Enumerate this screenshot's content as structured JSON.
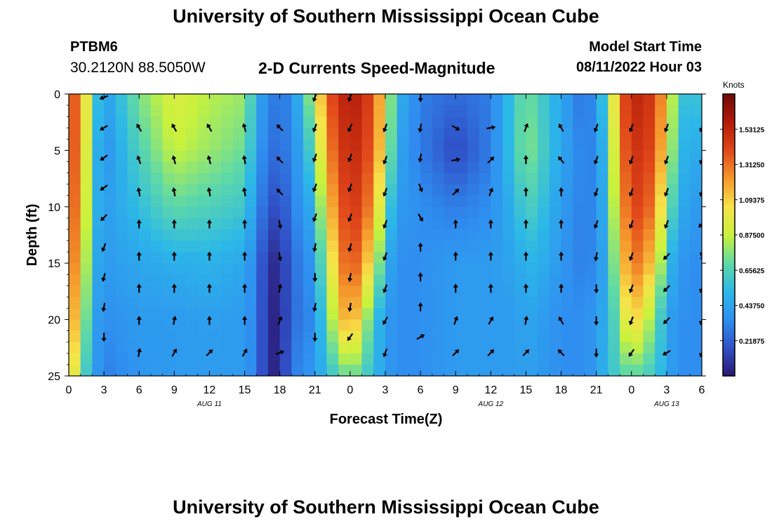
{
  "header": {
    "title": "University of Southern Mississippi Ocean Cube",
    "station_id": "PTBM6",
    "coordinates": "30.2120N  88.5050W",
    "subtitle": "2-D Currents Speed-Magnitude",
    "model_start_label": "Model Start Time",
    "model_start_value": "08/11/2022 Hour 03"
  },
  "footer": {
    "title": "University of Southern Mississippi Ocean Cube"
  },
  "colors": {
    "colormap": [
      "#2b1670",
      "#3050c8",
      "#2f8ff0",
      "#2cb8e8",
      "#5fd9a6",
      "#c8f23c",
      "#f7e34a",
      "#f59a2d",
      "#e1481a",
      "#b31b0a",
      "#6e0a08"
    ],
    "arrow": "#000000",
    "frame": "#000000"
  },
  "chart_data": {
    "type": "heatmap",
    "title": "2-D Currents Speed-Magnitude",
    "xlabel": "Forecast Time(Z)",
    "ylabel": "Depth (ft)",
    "units": "Knots",
    "x": [
      0,
      3,
      6,
      9,
      12,
      15,
      18,
      21,
      24,
      27,
      30,
      33,
      36,
      39,
      42,
      45,
      48,
      51,
      54
    ],
    "x_tick_labels": [
      "0",
      "3",
      "6",
      "9",
      "12",
      "15",
      "18",
      "21",
      "0",
      "3",
      "6",
      "9",
      "12",
      "15",
      "18",
      "21",
      "0",
      "3",
      "6"
    ],
    "date_labels": [
      {
        "x": 12,
        "label": "AUG 11"
      },
      {
        "x": 36,
        "label": "AUG 12"
      },
      {
        "x": 51,
        "label": "AUG 13"
      }
    ],
    "depth_ticks": [
      0,
      5,
      10,
      15,
      20,
      25
    ],
    "xlim": [
      0,
      54
    ],
    "ylim": [
      0,
      25
    ],
    "colorbar_ticks": [
      1.53125,
      1.3125,
      1.09375,
      0.875,
      0.65625,
      0.4375,
      0.21875
    ],
    "colorbar_tick_labels": [
      "1.53125",
      "1.31250",
      "1.09375",
      "0.87500",
      "0.65625",
      "0.43750",
      "0.21875"
    ],
    "colorbar_range": [
      0,
      1.75
    ],
    "speed_profiles": [
      {
        "hour": 0,
        "speeds": [
          1.4,
          1.4,
          1.38,
          1.35,
          1.3,
          1.2
        ]
      },
      {
        "hour": 1,
        "speeds": [
          1.3,
          1.3,
          1.25,
          1.15,
          1.0,
          0.75
        ]
      },
      {
        "hour": 2,
        "speeds": [
          0.7,
          0.6,
          0.55,
          0.5,
          0.45,
          0.45
        ]
      },
      {
        "hour": 3,
        "speeds": [
          0.4,
          0.35,
          0.4,
          0.4,
          0.35,
          0.3
        ]
      },
      {
        "hour": 6,
        "speeds": [
          0.75,
          0.65,
          0.55,
          0.45,
          0.4,
          0.38
        ]
      },
      {
        "hour": 9,
        "speeds": [
          0.95,
          0.88,
          0.7,
          0.48,
          0.4,
          0.4
        ]
      },
      {
        "hour": 12,
        "speeds": [
          0.85,
          0.8,
          0.65,
          0.5,
          0.42,
          0.4
        ]
      },
      {
        "hour": 15,
        "speeds": [
          0.8,
          0.72,
          0.6,
          0.45,
          0.4,
          0.4
        ]
      },
      {
        "hour": 16,
        "speeds": [
          0.5,
          0.45,
          0.35,
          0.3,
          0.3,
          0.3
        ]
      },
      {
        "hour": 17,
        "speeds": [
          0.3,
          0.25,
          0.2,
          0.08,
          0.05,
          0.05
        ]
      },
      {
        "hour": 18,
        "speeds": [
          0.3,
          0.28,
          0.15,
          0.06,
          0.04,
          0.05
        ]
      },
      {
        "hour": 19,
        "speeds": [
          0.32,
          0.3,
          0.3,
          0.25,
          0.25,
          0.3
        ]
      },
      {
        "hour": 21,
        "speeds": [
          0.9,
          0.7,
          0.5,
          0.4,
          0.35,
          0.4
        ]
      },
      {
        "hour": 22,
        "speeds": [
          1.35,
          1.25,
          1.1,
          0.9,
          0.7,
          0.55
        ]
      },
      {
        "hour": 24,
        "speeds": [
          1.6,
          1.55,
          1.5,
          1.45,
          1.3,
          0.75
        ]
      },
      {
        "hour": 26,
        "speeds": [
          1.4,
          1.35,
          1.25,
          1.0,
          0.6,
          0.55
        ]
      },
      {
        "hour": 27,
        "speeds": [
          1.0,
          0.95,
          0.7,
          0.5,
          0.4,
          0.4
        ]
      },
      {
        "hour": 28,
        "speeds": [
          0.5,
          0.45,
          0.4,
          0.35,
          0.35,
          0.35
        ]
      },
      {
        "hour": 30,
        "speeds": [
          0.3,
          0.3,
          0.35,
          0.35,
          0.35,
          0.35
        ]
      },
      {
        "hour": 33,
        "speeds": [
          0.25,
          0.15,
          0.3,
          0.4,
          0.4,
          0.4
        ]
      },
      {
        "hour": 36,
        "speeds": [
          0.3,
          0.3,
          0.35,
          0.4,
          0.4,
          0.4
        ]
      },
      {
        "hour": 38,
        "speeds": [
          0.6,
          0.6,
          0.5,
          0.45,
          0.4,
          0.4
        ]
      },
      {
        "hour": 39,
        "speeds": [
          0.75,
          0.78,
          0.65,
          0.5,
          0.45,
          0.42
        ]
      },
      {
        "hour": 40,
        "speeds": [
          0.65,
          0.68,
          0.6,
          0.5,
          0.42,
          0.4
        ]
      },
      {
        "hour": 42,
        "speeds": [
          0.45,
          0.45,
          0.4,
          0.38,
          0.35,
          0.35
        ]
      },
      {
        "hour": 44,
        "speeds": [
          0.25,
          0.3,
          0.3,
          0.3,
          0.35,
          0.35
        ]
      },
      {
        "hour": 45,
        "speeds": [
          0.4,
          0.35,
          0.35,
          0.35,
          0.4,
          0.4
        ]
      },
      {
        "hour": 46,
        "speeds": [
          0.7,
          0.6,
          0.55,
          0.5,
          0.5,
          0.55
        ]
      },
      {
        "hour": 47,
        "speeds": [
          1.3,
          1.25,
          1.15,
          1.0,
          0.8,
          0.65
        ]
      },
      {
        "hour": 48,
        "speeds": [
          1.55,
          1.5,
          1.45,
          1.35,
          1.15,
          0.7
        ]
      },
      {
        "hour": 50,
        "speeds": [
          1.45,
          1.4,
          1.3,
          1.1,
          0.75,
          0.6
        ]
      },
      {
        "hour": 51,
        "speeds": [
          1.1,
          1.0,
          0.8,
          0.55,
          0.45,
          0.45
        ]
      },
      {
        "hour": 52,
        "speeds": [
          0.6,
          0.55,
          0.5,
          0.4,
          0.35,
          0.35
        ]
      },
      {
        "hour": 53,
        "speeds": [
          0.55,
          0.45,
          0.4,
          0.35,
          0.35,
          0.35
        ]
      },
      {
        "hour": 54,
        "speeds": [
          0.6,
          0.5,
          0.4,
          0.35,
          0.35,
          0.35
        ]
      }
    ],
    "vector_columns": [
      {
        "hour": 3,
        "dirs": [
          250,
          240,
          235,
          235,
          225,
          200,
          195,
          190,
          180
        ]
      },
      {
        "hour": 6,
        "dirs": [
          330,
          340,
          350,
          0,
          0,
          0,
          0,
          10
        ]
      },
      {
        "hour": 9,
        "dirs": [
          330,
          345,
          350,
          0,
          0,
          0,
          10,
          30
        ]
      },
      {
        "hour": 12,
        "dirs": [
          330,
          345,
          350,
          0,
          0,
          0,
          0,
          45
        ]
      },
      {
        "hour": 15,
        "dirs": [
          345,
          350,
          350,
          0,
          0,
          0,
          0,
          30
        ]
      },
      {
        "hour": 18,
        "dirs": [
          315,
          315,
          315,
          170,
          170,
          10,
          20,
          70
        ]
      },
      {
        "hour": 21,
        "dirs": [
          200,
          200,
          200,
          200,
          200,
          190,
          180,
          190,
          180
        ]
      },
      {
        "hour": 24,
        "dirs": [
          200,
          205,
          200,
          200,
          200,
          195,
          190,
          190,
          215
        ]
      },
      {
        "hour": 27,
        "dirs": [
          200,
          200,
          200,
          200,
          200,
          200,
          210,
          200
        ]
      },
      {
        "hour": 30,
        "dirs": [
          180,
          190,
          190,
          160,
          150,
          0,
          0,
          0,
          60
        ]
      },
      {
        "hour": 33,
        "dirs": [
          120,
          80,
          45,
          0,
          0,
          0,
          20,
          45
        ]
      },
      {
        "hour": 36,
        "dirs": [
          80,
          45,
          20,
          0,
          0,
          0,
          30,
          45
        ]
      },
      {
        "hour": 39,
        "dirs": [
          20,
          0,
          0,
          0,
          0,
          0,
          10,
          45
        ]
      },
      {
        "hour": 42,
        "dirs": [
          330,
          320,
          0,
          0,
          0,
          0,
          330,
          315
        ]
      },
      {
        "hour": 45,
        "dirs": [
          200,
          200,
          200,
          200,
          190,
          180,
          180,
          180
        ]
      },
      {
        "hour": 48,
        "dirs": [
          200,
          200,
          200,
          200,
          200,
          200,
          200,
          215
        ]
      },
      {
        "hour": 51,
        "dirs": [
          200,
          200,
          200,
          200,
          225,
          225,
          225,
          240
        ]
      },
      {
        "hour": 54,
        "dirs": [
          200,
          200,
          200,
          225,
          160,
          200,
          200,
          200
        ]
      }
    ]
  }
}
